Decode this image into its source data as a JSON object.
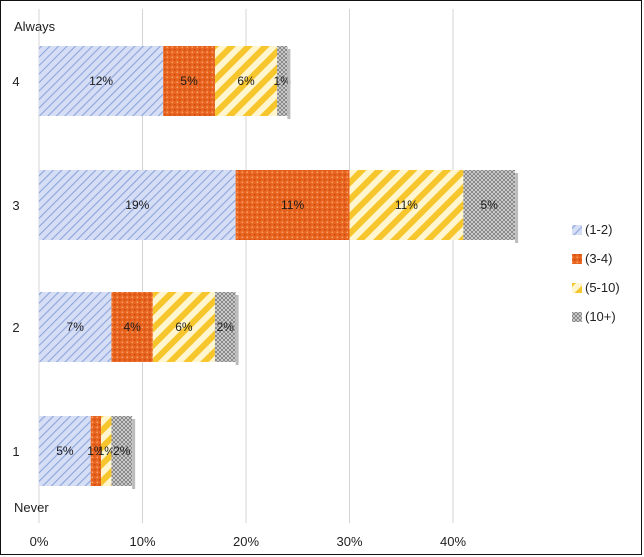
{
  "chart_data": {
    "type": "bar",
    "orientation": "horizontal",
    "stacked": true,
    "categories": [
      "4",
      "3",
      "2",
      "1"
    ],
    "series": [
      {
        "name": "(1-2)",
        "values": [
          12,
          19,
          7,
          5
        ],
        "labels": [
          "12%",
          "19%",
          "7%",
          "5%"
        ],
        "color": "#a9bbe8",
        "pattern": "diagonal-hatch-blue"
      },
      {
        "name": "(3-4)",
        "values": [
          5,
          11,
          4,
          1
        ],
        "labels": [
          "5%",
          "11%",
          "4%",
          "1%"
        ],
        "color": "#e8641f",
        "pattern": "dotted-orange"
      },
      {
        "name": "(5-10)",
        "values": [
          6,
          11,
          6,
          1
        ],
        "labels": [
          "6%",
          "11%",
          "6%",
          "1%"
        ],
        "color": "#f7c52c",
        "pattern": "wide-stripe-yellow"
      },
      {
        "name": "(10+)",
        "values": [
          1,
          5,
          2,
          2
        ],
        "labels": [
          "1%",
          "5%",
          "2%",
          "2%"
        ],
        "color": "#a0a0a0",
        "pattern": "checker-gray"
      }
    ],
    "x_ticks": [
      "0%",
      "10%",
      "20%",
      "30%",
      "40%"
    ],
    "xlim": [
      0,
      45
    ],
    "annotations": {
      "top": "Always",
      "bottom": "Never"
    },
    "grid": "vertical",
    "legend_position": "right"
  }
}
